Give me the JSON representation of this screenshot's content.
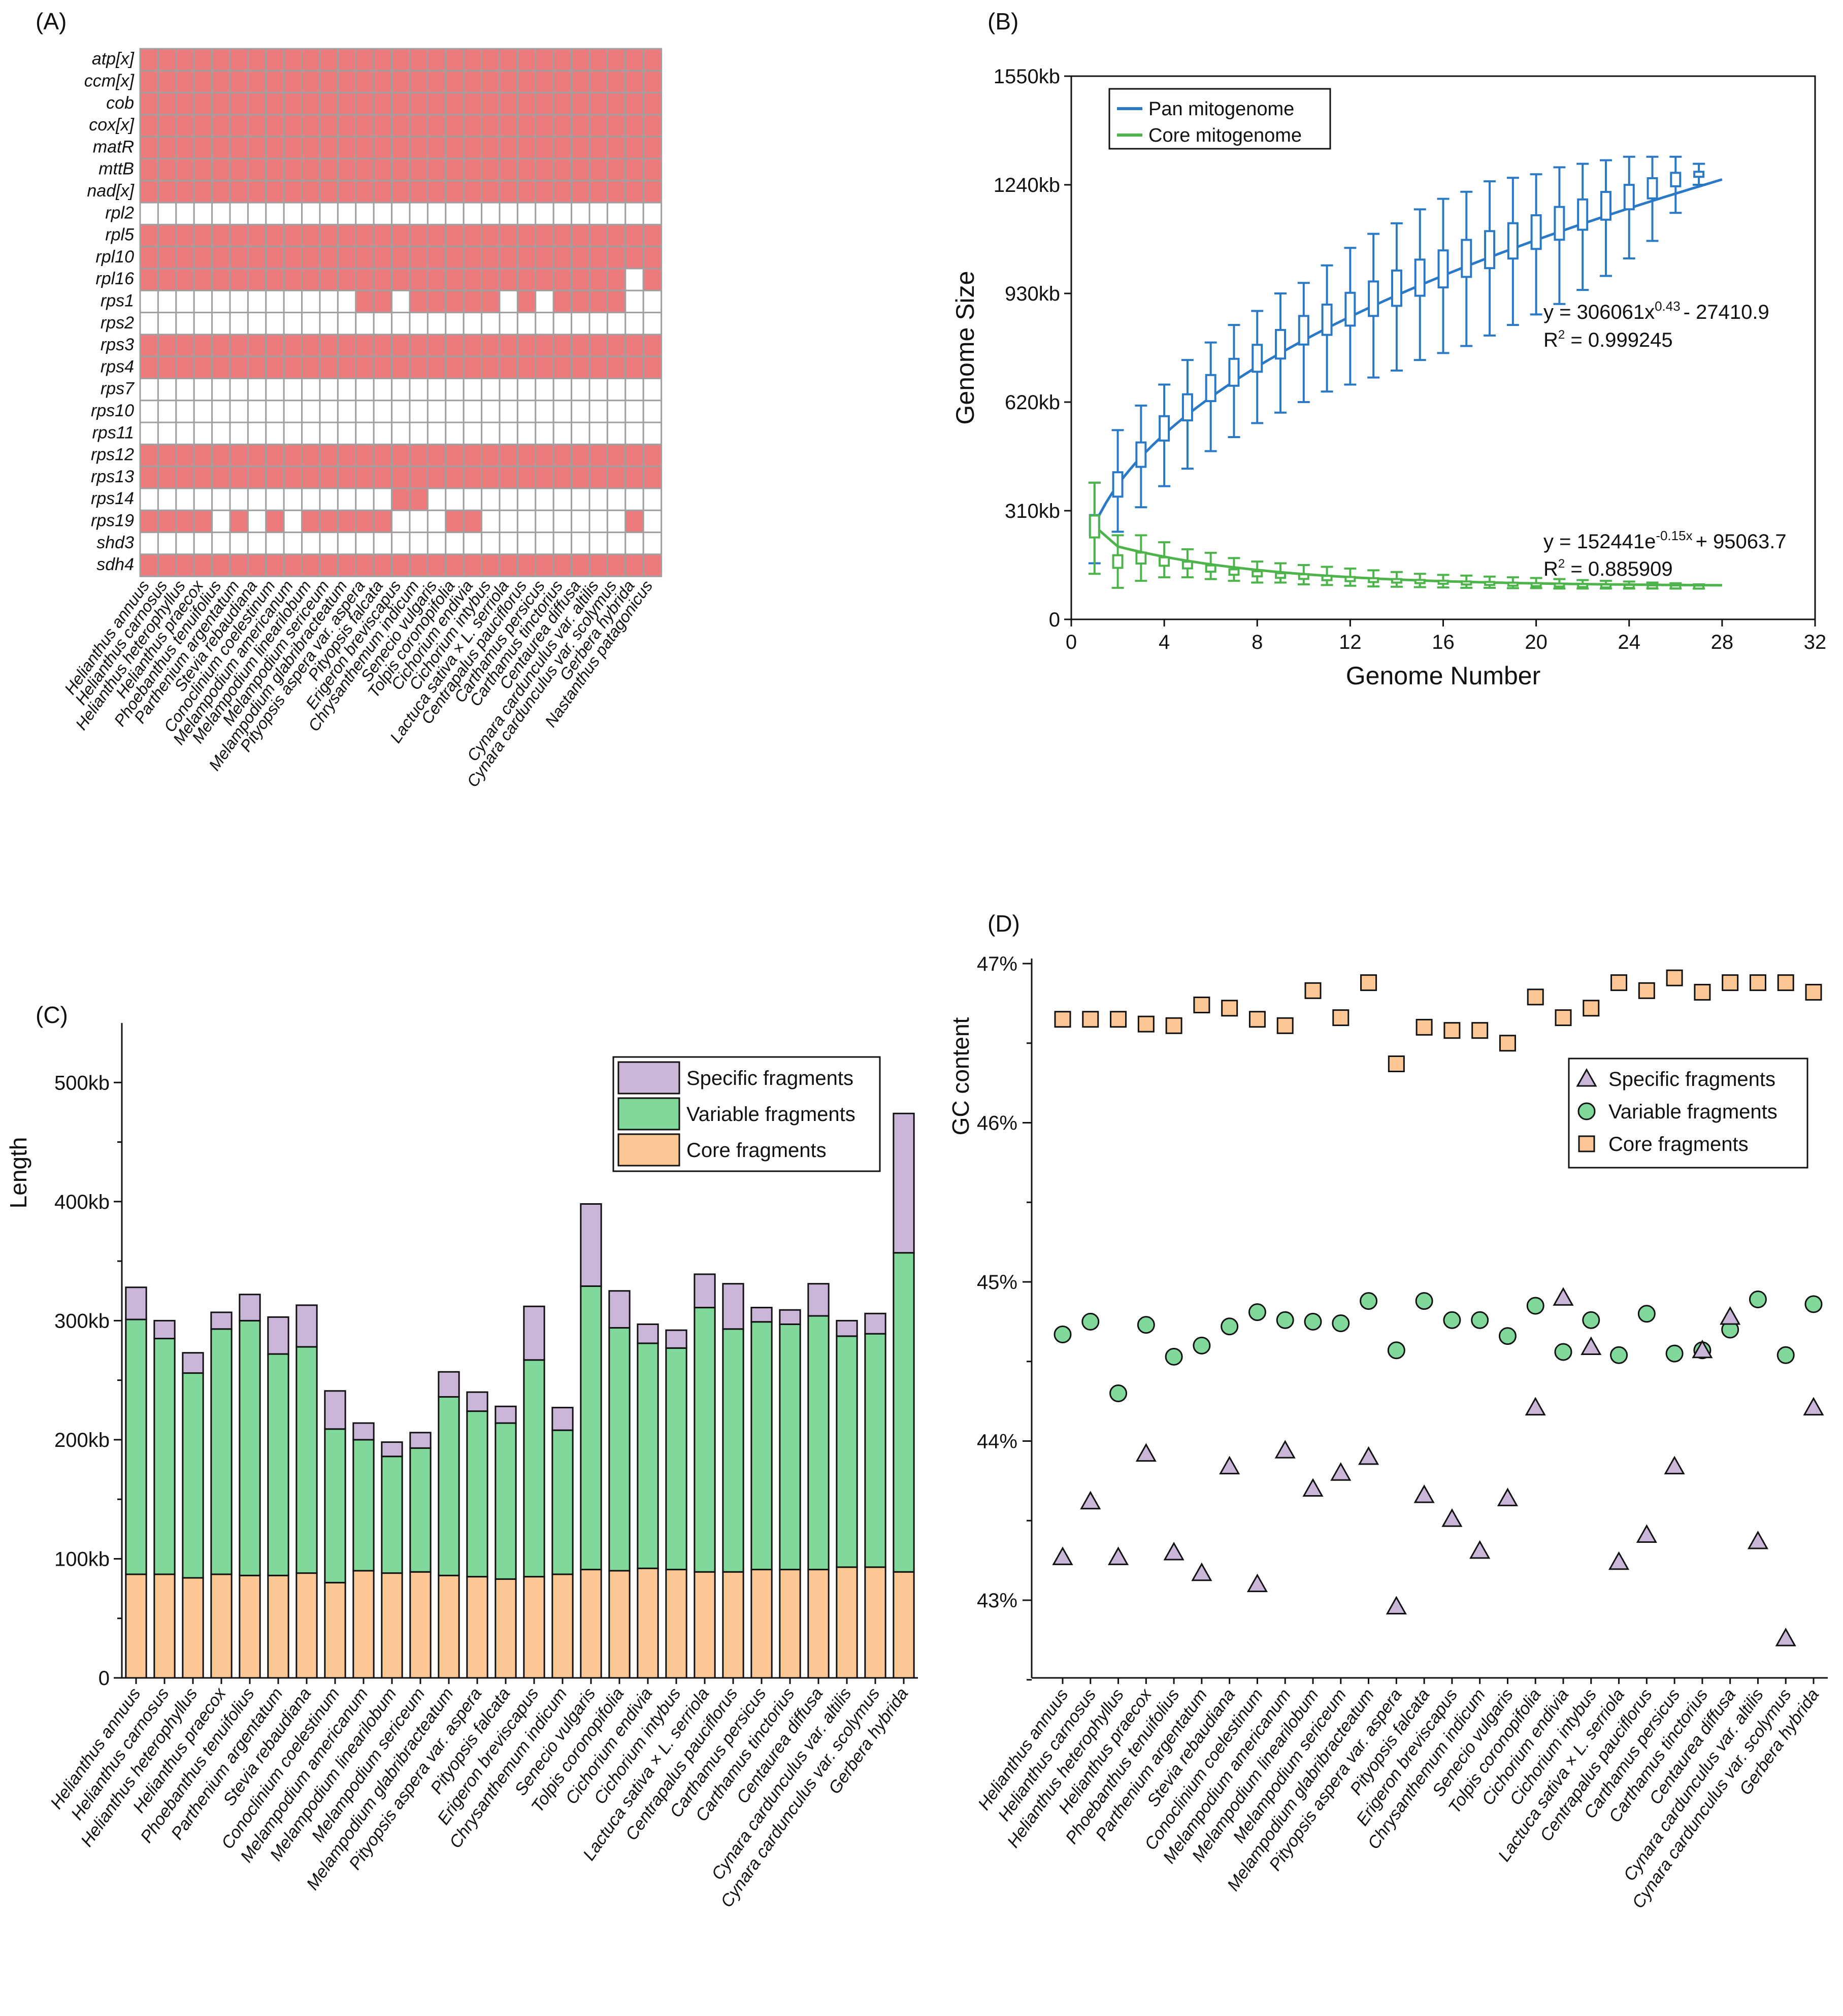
{
  "colors": {
    "present": "#ec7b7e",
    "absent": "#ffffff",
    "grid": "#a0a0a0",
    "pan": "#2a79c7",
    "core": "#4cb44a",
    "specific": "#cbb6da",
    "variable": "#80d89b",
    "corefrag": "#fdc795"
  },
  "chart_data": [
    {
      "panel": "(A)",
      "type": "heatmap",
      "genes": [
        "atp[x]",
        "ccm[x]",
        "cob",
        "cox[x]",
        "matR",
        "mttB",
        "nad[x]",
        "rpl2",
        "rpl5",
        "rpl10",
        "rpl16",
        "rps1",
        "rps2",
        "rps3",
        "rps4",
        "rps7",
        "rps10",
        "rps11",
        "rps12",
        "rps13",
        "rps14",
        "rps19",
        "shd3",
        "sdh4"
      ],
      "species": [
        "Helianthus annuus",
        "Helianthus carnosus",
        "Helianthus heterophyllus",
        "Helianthus praecox",
        "Phoebanthus tenuifolius",
        "Parthenium argentatum",
        "Stevia rebaudiana",
        "Conoclinium coelestinum",
        "Melampodium americanum",
        "Melampodium linearilobum",
        "Melampodium sericeum",
        "Melampodium glabribracteatum",
        "Pityopsis aspera var. aspera",
        "Pityopsis falcata",
        "Erigeron breviscapus",
        "Chrysanthemum indicum",
        "Senecio vulgaris",
        "Tolpis coronopifolia",
        "Cichorium endivia",
        "Cichorium intybus",
        "Lactuca sativa × L. serriola",
        "Centrapalus pauciflorus",
        "Carthamus persicus",
        "Carthamus tinctorius",
        "Centaurea diffusa",
        "Cynara cardunculus var. altilis",
        "Cynara cardunculus var. scolymus",
        "Gerbera hybrida",
        "Nastanthus patagonicus"
      ],
      "matrix": [
        "11111111111111111111111111111",
        "11111111111111111111111111111",
        "11111111111111111111111111111",
        "11111111111111111111111111111",
        "11111111111111111111111111111",
        "11111111111111111111111111111",
        "11111111111111111111111111111",
        "00000000000000000000000000000",
        "11111111111111111111111111111",
        "11111111111111111111111111111",
        "11111111111111111111111111101",
        "00000000000011011111010111100",
        "00000000000000000000000000000",
        "11111111111111111111111111111",
        "11111111111111111111111111111",
        "00000000000000000000000000000",
        "00000000000000000000000000000",
        "00000000000000000000000000000",
        "11111111111111111111111111111",
        "11111111111111111111111111111",
        "00000000000000110000000000000",
        "11110101011111000110000000010",
        "00000000000000000000000000000",
        "11111111111111111111111111111"
      ]
    },
    {
      "panel": "(B)",
      "type": "line",
      "xlabel": "Genome Number",
      "ylabel": "Genome Size",
      "xlim": [
        0,
        32
      ],
      "ylim": [
        0,
        1550
      ],
      "xticks": [
        "0",
        "4",
        "8",
        "12",
        "16",
        "20",
        "24",
        "28",
        "32"
      ],
      "yticks": [
        "0",
        "310kb",
        "620kb",
        "930kb",
        "1240kb",
        "1550kb"
      ],
      "legend": [
        "Pan mitogenome",
        "Core mitogenome"
      ],
      "x": [
        1,
        2,
        3,
        4,
        5,
        6,
        7,
        8,
        9,
        10,
        11,
        12,
        13,
        14,
        15,
        16,
        17,
        18,
        19,
        20,
        21,
        22,
        23,
        24,
        25,
        26,
        27
      ],
      "series": [
        {
          "name": "Pan mitogenome",
          "median": [
            270,
            385,
            470,
            545,
            605,
            660,
            705,
            745,
            785,
            825,
            855,
            885,
            915,
            945,
            975,
            1000,
            1030,
            1055,
            1080,
            1105,
            1130,
            1155,
            1180,
            1205,
            1230,
            1255,
            1270
          ],
          "low": [
            160,
            250,
            320,
            380,
            430,
            480,
            520,
            560,
            590,
            620,
            650,
            670,
            690,
            710,
            740,
            760,
            780,
            810,
            840,
            870,
            900,
            940,
            980,
            1030,
            1080,
            1160,
            1240
          ],
          "high": [
            390,
            540,
            610,
            670,
            740,
            790,
            840,
            880,
            930,
            960,
            1010,
            1060,
            1100,
            1130,
            1170,
            1200,
            1220,
            1250,
            1260,
            1270,
            1290,
            1300,
            1310,
            1320,
            1320,
            1320,
            1300
          ],
          "fit_label": "y = 306061x",
          "fit_exponent": "0.43",
          "fit_tail": "- 27410.9",
          "r2_label": "R",
          "r2_value": " = 0.999245"
        },
        {
          "name": "Core mitogenome",
          "median": [
            265,
            165,
            175,
            165,
            155,
            145,
            135,
            130,
            125,
            122,
            118,
            115,
            112,
            110,
            108,
            106,
            104,
            103,
            101,
            100,
            99,
            98,
            97,
            96,
            95,
            95,
            95
          ],
          "low": [
            130,
            90,
            110,
            120,
            120,
            115,
            110,
            105,
            105,
            100,
            98,
            96,
            94,
            93,
            92,
            91,
            90,
            90,
            89,
            89,
            88,
            88,
            88,
            88,
            88,
            88,
            88
          ],
          "high": [
            390,
            240,
            240,
            220,
            200,
            190,
            175,
            165,
            160,
            155,
            150,
            145,
            140,
            135,
            130,
            127,
            125,
            122,
            120,
            118,
            115,
            112,
            110,
            108,
            105,
            103,
            100
          ],
          "fit_label": "y = 152441e",
          "fit_exponent": "-0.15x",
          "fit_tail": "+ 95063.7",
          "r2_label": "R",
          "r2_value": " = 0.885909"
        }
      ]
    },
    {
      "panel": "(C)",
      "type": "bar",
      "ylabel": "Length",
      "ylim": [
        0,
        550
      ],
      "yticks": [
        "0",
        "100kb",
        "200kb",
        "300kb",
        "400kb",
        "500kb"
      ],
      "legend": [
        "Specific fragments",
        "Variable fragments",
        "Core fragments"
      ],
      "categories": [
        "Helianthus annuus",
        "Helianthus carnosus",
        "Helianthus heterophyllus",
        "Helianthus praecox",
        "Phoebanthus tenuifolius",
        "Parthenium argentatum",
        "Stevia rebaudiana",
        "Conoclinium coelestinum",
        "Melampodium americanum",
        "Melampodium linearilobum",
        "Melampodium sericeum",
        "Melampodium glabribracteatum",
        "Pityopsis aspera var. aspera",
        "Pityopsis falcata",
        "Erigeron breviscapus",
        "Chrysanthemum indicum",
        "Senecio vulgaris",
        "Tolpis coronopifolia",
        "Cichorium endivia",
        "Cichorium intybus",
        "Lactuca sativa × L. serriola",
        "Centrapalus pauciflorus",
        "Carthamus persicus",
        "Carthamus tinctorius",
        "Centaurea diffusa",
        "Cynara cardunculus var. altilis",
        "Cynara cardunculus var. scolymus",
        "Gerbera hybrida"
      ],
      "series": [
        {
          "name": "Core fragments",
          "values": [
            87,
            87,
            84,
            87,
            86,
            86,
            88,
            80,
            90,
            88,
            89,
            86,
            85,
            83,
            85,
            87,
            91,
            90,
            92,
            91,
            89,
            89,
            91,
            91,
            91,
            93,
            93,
            89
          ]
        },
        {
          "name": "Variable fragments",
          "values": [
            214,
            198,
            172,
            206,
            214,
            186,
            190,
            129,
            110,
            98,
            104,
            150,
            139,
            131,
            182,
            121,
            238,
            204,
            189,
            186,
            222,
            204,
            208,
            206,
            213,
            194,
            196,
            268
          ]
        },
        {
          "name": "Specific fragments",
          "values": [
            27,
            15,
            17,
            14,
            22,
            31,
            35,
            32,
            14,
            12,
            13,
            21,
            16,
            14,
            45,
            19,
            69,
            31,
            16,
            15,
            28,
            38,
            12,
            12,
            27,
            13,
            17,
            117
          ]
        }
      ]
    },
    {
      "panel": "(D)",
      "type": "scatter",
      "ylabel": "GC content",
      "ylim": [
        42.5,
        47.0
      ],
      "yticks": [
        "43%",
        "44%",
        "45%",
        "46%",
        "47%"
      ],
      "legend": [
        "Specific fragments",
        "Variable fragments",
        "Core fragments"
      ],
      "categories": [
        "Helianthus annuus",
        "Helianthus carnosus",
        "Helianthus heterophyllus",
        "Helianthus praecox",
        "Phoebanthus tenuifolius",
        "Parthenium argentatum",
        "Stevia rebaudiana",
        "Conoclinium coelestinum",
        "Melampodium americanum",
        "Melampodium linearilobum",
        "Melampodium sericeum",
        "Melampodium glabribracteatum",
        "Pityopsis aspera var. aspera",
        "Pityopsis falcata",
        "Erigeron breviscapus",
        "Chrysanthemum indicum",
        "Senecio vulgaris",
        "Tolpis coronopifolia",
        "Cichorium endivia",
        "Cichorium intybus",
        "Lactuca sativa × L. serriola",
        "Centrapalus pauciflorus",
        "Carthamus persicus",
        "Carthamus tinctorius",
        "Centaurea diffusa",
        "Cynara cardunculus var. altilis",
        "Cynara cardunculus var. scolymus",
        "Gerbera hybrida"
      ],
      "series": [
        {
          "name": "Core fragments",
          "values": [
            46.65,
            46.65,
            46.65,
            46.62,
            46.61,
            46.74,
            46.72,
            46.65,
            46.61,
            46.83,
            46.66,
            46.88,
            46.37,
            46.6,
            46.58,
            46.58,
            46.5,
            46.79,
            46.66,
            46.72,
            46.88,
            46.83,
            46.91,
            46.82,
            46.88,
            46.88,
            46.88,
            46.82
          ]
        },
        {
          "name": "Variable fragments",
          "values": [
            44.67,
            44.75,
            44.3,
            44.73,
            44.53,
            44.6,
            44.72,
            44.81,
            44.76,
            44.75,
            44.74,
            44.88,
            44.57,
            44.88,
            44.76,
            44.76,
            44.66,
            44.85,
            44.56,
            44.76,
            44.54,
            44.8,
            44.55,
            44.57,
            44.7,
            44.89,
            44.54,
            44.86
          ]
        },
        {
          "name": "Specific fragments",
          "values": [
            43.27,
            43.62,
            43.27,
            43.92,
            43.3,
            43.17,
            43.84,
            43.1,
            43.94,
            43.7,
            43.8,
            43.9,
            42.96,
            43.66,
            43.51,
            43.31,
            43.64,
            44.21,
            44.9,
            44.59,
            43.24,
            43.41,
            43.84,
            44.57,
            44.78,
            43.37,
            42.76,
            44.21
          ]
        }
      ]
    }
  ],
  "panels": {
    "a_label": "(A)",
    "b_label": "(B)",
    "c_label": "(C)",
    "d_label": "(D)"
  }
}
